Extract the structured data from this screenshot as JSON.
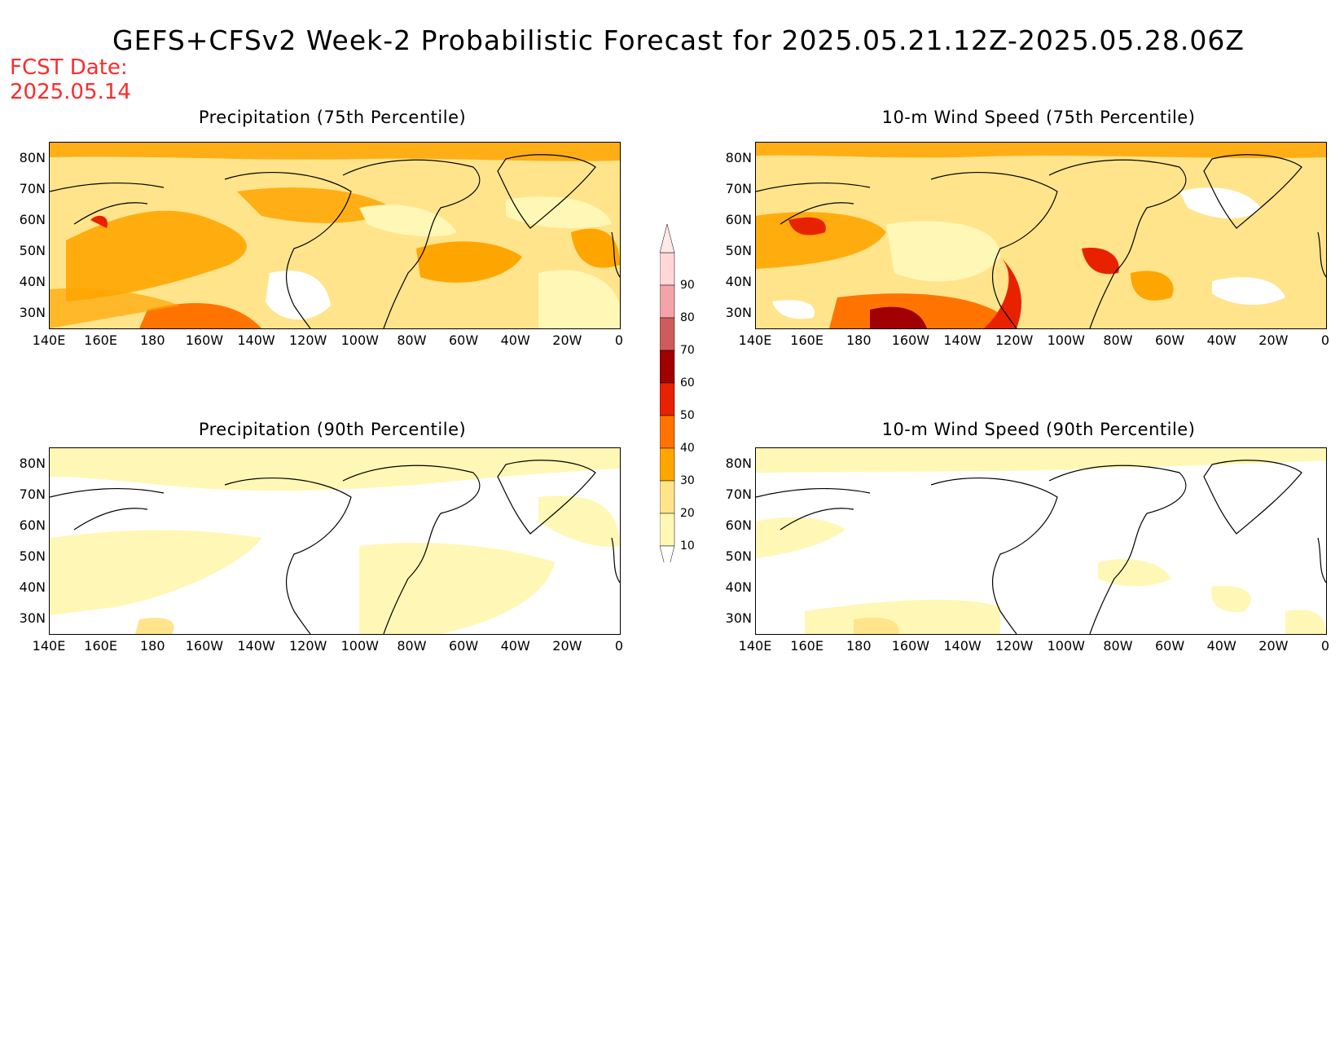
{
  "title": "GEFS+CFSv2 Week-2 Probabilistic Forecast for 2025.05.21.12Z-2025.05.28.06Z",
  "fcst_date": {
    "label": "FCST Date:",
    "value": "2025.05.14"
  },
  "panels": [
    {
      "title": "Precipitation (75th Percentile)"
    },
    {
      "title": "10-m Wind Speed (75th Percentile)"
    },
    {
      "title": "Precipitation (90th Percentile)"
    },
    {
      "title": "10-m Wind Speed (90th Percentile)"
    }
  ],
  "lat_labels": [
    "80N",
    "70N",
    "60N",
    "50N",
    "40N",
    "30N"
  ],
  "lon_labels": [
    "140E",
    "160E",
    "180",
    "160W",
    "140W",
    "120W",
    "100W",
    "80W",
    "60W",
    "40W",
    "20W",
    "0"
  ],
  "colorbar": {
    "levels": [
      "10",
      "20",
      "30",
      "40",
      "50",
      "60",
      "70",
      "80",
      "90"
    ],
    "colors": [
      "#fff7b5",
      "#ffe48c",
      "#ffa500",
      "#ff7400",
      "#e82200",
      "#a00000",
      "#cf5c5c",
      "#f4a4a8",
      "#ffd7d7"
    ]
  }
}
